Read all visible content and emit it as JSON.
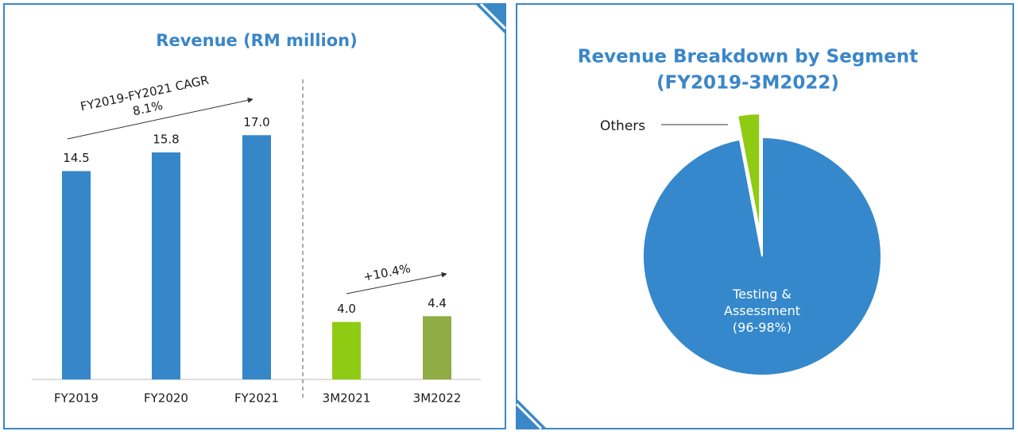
{
  "chart_data": [
    {
      "type": "bar",
      "title": "Revenue (RM million)",
      "categories": [
        "FY2019",
        "FY2020",
        "FY2021",
        "3M2021",
        "3M2022"
      ],
      "values": [
        14.5,
        15.8,
        17.0,
        4.0,
        4.4
      ],
      "value_labels": [
        "14.5",
        "15.8",
        "17.0",
        "4.0",
        "4.4"
      ],
      "colors": [
        "#3587c9",
        "#3587c9",
        "#3587c9",
        "#8fcb13",
        "#8fac45"
      ],
      "ylim": [
        0,
        20
      ],
      "annotations": [
        "FY2019-FY2021 CAGR",
        "8.1%",
        "+10.4%"
      ]
    },
    {
      "type": "pie",
      "title": [
        "Revenue Breakdown by Segment",
        "(FY2019-3M2022)"
      ],
      "categories": [
        "Testing & Assessment (96-98%)",
        "Others"
      ],
      "values": [
        97,
        3
      ],
      "colors": [
        "#3588cb",
        "#8fcb13"
      ]
    }
  ]
}
